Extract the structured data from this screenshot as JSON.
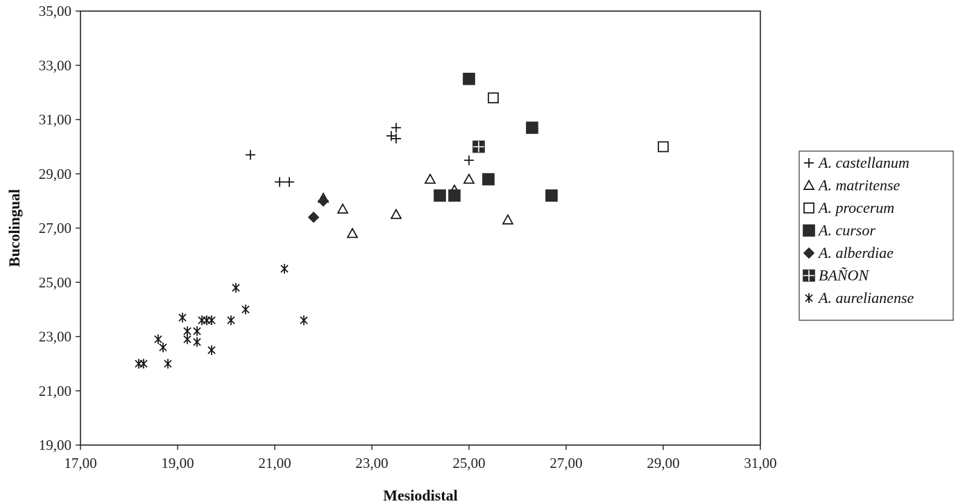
{
  "chart_data": {
    "type": "scatter",
    "title": "",
    "xlabel": "Mesiodistal",
    "ylabel": "Bucolingual",
    "xlim": [
      17,
      31
    ],
    "ylim": [
      19,
      35
    ],
    "x_ticks": [
      "17,00",
      "19,00",
      "21,00",
      "23,00",
      "25,00",
      "27,00",
      "29,00",
      "31,00"
    ],
    "y_ticks": [
      "35,00",
      "33,00",
      "31,00",
      "29,00",
      "27,00",
      "25,00",
      "23,00",
      "21,00",
      "19,00"
    ],
    "grid": false,
    "legend_position": "right",
    "series": [
      {
        "name": "A. castellanum",
        "marker": "plus",
        "points": [
          [
            20.5,
            29.7
          ],
          [
            21.1,
            28.7
          ],
          [
            21.3,
            28.7
          ],
          [
            23.4,
            30.4
          ],
          [
            23.5,
            30.7
          ],
          [
            23.5,
            30.3
          ],
          [
            25.0,
            29.5
          ]
        ]
      },
      {
        "name": "A. matritense",
        "marker": "triangle",
        "points": [
          [
            22.0,
            28.1
          ],
          [
            22.4,
            27.7
          ],
          [
            22.6,
            26.8
          ],
          [
            23.5,
            27.5
          ],
          [
            24.2,
            28.8
          ],
          [
            24.7,
            28.4
          ],
          [
            25.0,
            28.8
          ],
          [
            25.8,
            27.3
          ]
        ]
      },
      {
        "name": "A. procerum",
        "marker": "square-open",
        "points": [
          [
            25.5,
            31.8
          ],
          [
            29.0,
            30.0
          ]
        ]
      },
      {
        "name": "A. cursor",
        "marker": "square-filled",
        "points": [
          [
            25.0,
            32.5
          ],
          [
            24.4,
            28.2
          ],
          [
            24.7,
            28.2
          ],
          [
            25.4,
            28.8
          ],
          [
            26.3,
            30.7
          ],
          [
            26.7,
            28.2
          ]
        ]
      },
      {
        "name": "A. alberdiae",
        "marker": "diamond",
        "points": [
          [
            21.8,
            27.4
          ],
          [
            22.0,
            28.0
          ]
        ]
      },
      {
        "name": "BAÑON",
        "marker": "square-cross",
        "points": [
          [
            25.2,
            30.0
          ]
        ]
      },
      {
        "name": "A. aurelianense",
        "marker": "asterisk",
        "points": [
          [
            18.2,
            22.0
          ],
          [
            18.3,
            22.0
          ],
          [
            18.6,
            22.9
          ],
          [
            18.7,
            22.6
          ],
          [
            18.8,
            22.0
          ],
          [
            19.1,
            23.7
          ],
          [
            19.2,
            22.9
          ],
          [
            19.2,
            23.2
          ],
          [
            19.4,
            22.8
          ],
          [
            19.4,
            23.2
          ],
          [
            19.5,
            23.6
          ],
          [
            19.6,
            23.6
          ],
          [
            19.7,
            22.5
          ],
          [
            19.7,
            23.6
          ],
          [
            20.1,
            23.6
          ],
          [
            20.2,
            24.8
          ],
          [
            20.4,
            24.0
          ],
          [
            21.2,
            25.5
          ],
          [
            21.6,
            23.6
          ]
        ]
      }
    ]
  }
}
